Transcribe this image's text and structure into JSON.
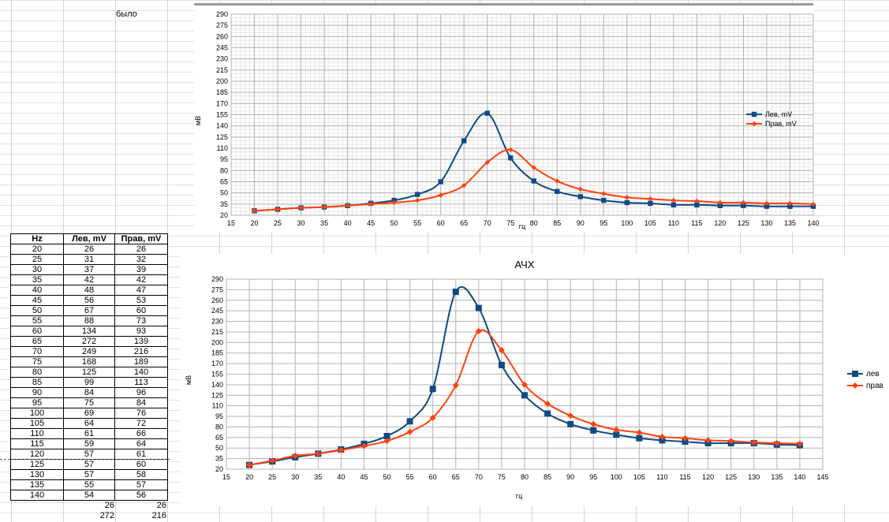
{
  "sheet": {
    "note": "было",
    "table": {
      "headers": [
        "Hz",
        "Лев, mV",
        "Прав, mV"
      ],
      "rows": [
        [
          "20",
          "26",
          "26"
        ],
        [
          "25",
          "31",
          "32"
        ],
        [
          "30",
          "37",
          "39"
        ],
        [
          "35",
          "42",
          "42"
        ],
        [
          "40",
          "48",
          "47"
        ],
        [
          "45",
          "56",
          "53"
        ],
        [
          "50",
          "67",
          "60"
        ],
        [
          "55",
          "88",
          "73"
        ],
        [
          "60",
          "134",
          "93"
        ],
        [
          "65",
          "272",
          "139"
        ],
        [
          "70",
          "249",
          "216"
        ],
        [
          "75",
          "168",
          "189"
        ],
        [
          "80",
          "125",
          "140"
        ],
        [
          "85",
          "99",
          "113"
        ],
        [
          "90",
          "84",
          "96"
        ],
        [
          "95",
          "75",
          "84"
        ],
        [
          "100",
          "69",
          "76"
        ],
        [
          "105",
          "64",
          "72"
        ],
        [
          "110",
          "61",
          "66"
        ],
        [
          "115",
          "59",
          "64"
        ],
        [
          "120",
          "57",
          "61"
        ],
        [
          "125",
          "57",
          "60"
        ],
        [
          "130",
          "57",
          "58"
        ],
        [
          "135",
          "55",
          "57"
        ],
        [
          "140",
          "54",
          "56"
        ]
      ],
      "extra_rows": [
        [
          "26",
          "26"
        ],
        [
          "272",
          "216"
        ]
      ]
    }
  },
  "chart_data": [
    {
      "type": "line",
      "title": "",
      "xlabel": "гц",
      "ylabel": "мВ",
      "xlim": [
        15,
        140
      ],
      "ylim": [
        20,
        290
      ],
      "x_ticks": [
        15,
        20,
        25,
        30,
        35,
        40,
        45,
        50,
        55,
        60,
        65,
        70,
        75,
        80,
        85,
        90,
        95,
        100,
        105,
        110,
        115,
        120,
        125,
        130,
        135,
        140
      ],
      "y_ticks": [
        20,
        35,
        50,
        65,
        80,
        95,
        110,
        125,
        140,
        155,
        170,
        185,
        200,
        215,
        230,
        245,
        260,
        275,
        290
      ],
      "grid": true,
      "legend": "right",
      "x": [
        20,
        25,
        30,
        35,
        40,
        45,
        50,
        55,
        60,
        65,
        70,
        75,
        80,
        85,
        90,
        95,
        100,
        105,
        110,
        115,
        120,
        125,
        130,
        135,
        140
      ],
      "series": [
        {
          "name": "Лев, mV",
          "color": "#0e4a84",
          "marker": "square",
          "values": [
            26,
            28,
            30,
            31,
            33,
            36,
            40,
            48,
            65,
            120,
            157,
            97,
            66,
            52,
            45,
            40,
            37,
            36,
            34,
            34,
            33,
            33,
            32,
            32,
            32
          ]
        },
        {
          "name": "Прав, mV",
          "color": "#ff420e",
          "marker": "diamond",
          "values": [
            26,
            28,
            30,
            31,
            33,
            35,
            37,
            40,
            47,
            60,
            91,
            108,
            84,
            66,
            55,
            49,
            44,
            42,
            40,
            39,
            37,
            37,
            36,
            36,
            35
          ]
        }
      ]
    },
    {
      "type": "line",
      "title": "АЧХ",
      "xlabel": "гц",
      "ylabel": "мВ",
      "xlim": [
        15,
        145
      ],
      "ylim": [
        20,
        290
      ],
      "x_ticks": [
        15,
        20,
        25,
        30,
        35,
        40,
        45,
        50,
        55,
        60,
        65,
        70,
        75,
        80,
        85,
        90,
        95,
        100,
        105,
        110,
        115,
        120,
        125,
        130,
        135,
        140,
        145
      ],
      "y_ticks": [
        20,
        35,
        50,
        65,
        80,
        95,
        110,
        125,
        140,
        155,
        170,
        185,
        200,
        215,
        230,
        245,
        260,
        275,
        290
      ],
      "grid": true,
      "legend": "right",
      "x": [
        20,
        25,
        30,
        35,
        40,
        45,
        50,
        55,
        60,
        65,
        70,
        75,
        80,
        85,
        90,
        95,
        100,
        105,
        110,
        115,
        120,
        125,
        130,
        135,
        140
      ],
      "series": [
        {
          "name": "лев",
          "color": "#0e4a84",
          "marker": "square",
          "values": [
            26,
            31,
            37,
            42,
            48,
            56,
            67,
            88,
            134,
            272,
            249,
            168,
            125,
            99,
            84,
            75,
            69,
            64,
            61,
            59,
            57,
            57,
            57,
            55,
            54
          ]
        },
        {
          "name": "прав",
          "color": "#ff420e",
          "marker": "diamond",
          "values": [
            26,
            32,
            39,
            42,
            47,
            53,
            60,
            73,
            93,
            139,
            216,
            189,
            140,
            113,
            96,
            84,
            76,
            72,
            66,
            64,
            61,
            60,
            58,
            57,
            56
          ]
        }
      ]
    }
  ]
}
